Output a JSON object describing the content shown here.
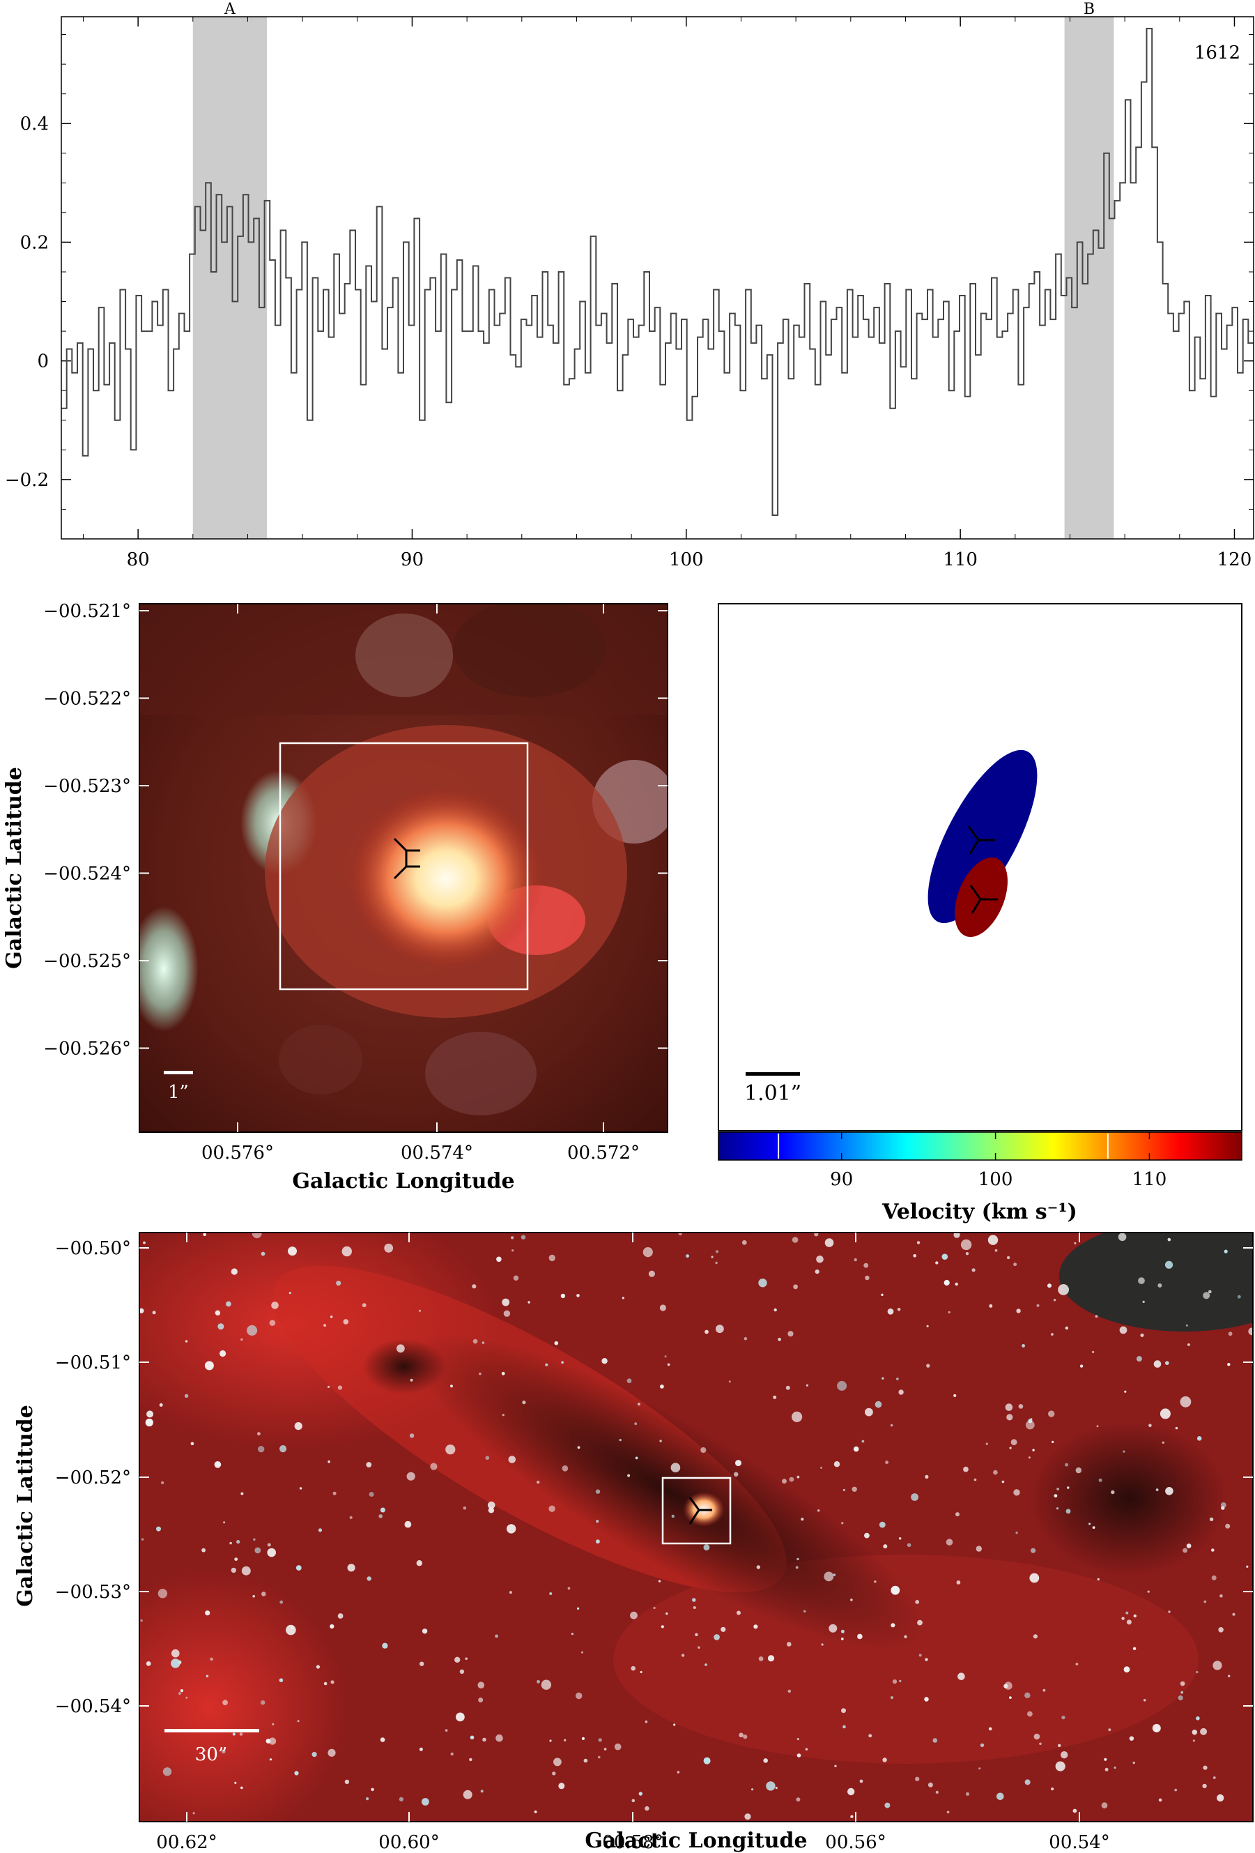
{
  "spectrum": {
    "channel_label": "1612",
    "chart_data": {
      "type": "line",
      "xlim": [
        77.2,
        120.7
      ],
      "ylim": [
        -0.3,
        0.58
      ],
      "x_ticks": [
        80,
        90,
        100,
        110,
        120
      ],
      "y_ticks": [
        -0.2,
        0,
        0.2,
        0.4
      ],
      "y_tick_labels": [
        "−0.2",
        "0",
        "0.2",
        "0.4"
      ],
      "highlight_regions": [
        {
          "label": "A",
          "x0": 82.0,
          "x1": 84.7
        },
        {
          "label": "B",
          "x0": 113.8,
          "x1": 115.6
        }
      ],
      "series_x_start": 77.2,
      "series_x_end": 120.7,
      "series_values": [
        -0.08,
        0.02,
        -0.02,
        0.03,
        -0.16,
        0.02,
        -0.05,
        0.09,
        -0.04,
        0.03,
        -0.1,
        0.12,
        0.02,
        -0.15,
        0.11,
        0.05,
        0.05,
        0.1,
        0.06,
        0.12,
        -0.05,
        0.02,
        0.08,
        0.05,
        0.18,
        0.26,
        0.22,
        0.3,
        0.15,
        0.28,
        0.2,
        0.26,
        0.1,
        0.21,
        0.28,
        0.2,
        0.24,
        0.09,
        0.27,
        0.17,
        0.06,
        0.22,
        0.14,
        -0.02,
        0.12,
        0.2,
        -0.1,
        0.14,
        0.05,
        0.12,
        0.04,
        0.18,
        0.08,
        0.13,
        0.22,
        0.12,
        -0.04,
        0.16,
        0.1,
        0.26,
        0.02,
        0.09,
        0.14,
        -0.02,
        0.2,
        0.06,
        0.24,
        -0.1,
        0.12,
        0.14,
        0.05,
        0.18,
        -0.07,
        0.12,
        0.17,
        0.05,
        0.05,
        0.16,
        0.05,
        0.03,
        0.12,
        0.06,
        0.08,
        0.14,
        0.01,
        -0.01,
        0.07,
        0.06,
        0.11,
        0.04,
        0.15,
        0.06,
        0.03,
        0.15,
        -0.04,
        -0.03,
        0.02,
        0.1,
        -0.02,
        0.21,
        0.06,
        0.08,
        0.03,
        0.13,
        -0.05,
        0.01,
        0.07,
        0.04,
        0.06,
        0.15,
        0.05,
        0.09,
        -0.04,
        0.03,
        0.08,
        0.02,
        0.07,
        -0.1,
        -0.06,
        0.04,
        0.07,
        0.02,
        0.12,
        0.05,
        -0.02,
        0.08,
        0.06,
        -0.05,
        0.12,
        0.03,
        0.06,
        -0.03,
        0.01,
        -0.26,
        0.03,
        0.07,
        -0.03,
        0.06,
        0.04,
        0.13,
        0.02,
        -0.04,
        0.1,
        0.01,
        0.07,
        0.09,
        -0.02,
        0.12,
        0.04,
        0.11,
        0.07,
        0.04,
        0.09,
        0.03,
        0.13,
        -0.08,
        0.05,
        -0.01,
        0.12,
        -0.03,
        0.08,
        0.07,
        0.12,
        0.04,
        0.07,
        0.1,
        -0.05,
        0.05,
        0.11,
        -0.06,
        0.13,
        0.01,
        0.08,
        0.07,
        0.14,
        0.04,
        0.05,
        0.08,
        0.12,
        -0.04,
        0.09,
        0.13,
        0.15,
        0.06,
        0.12,
        0.07,
        0.18,
        0.11,
        0.14,
        0.09,
        0.2,
        0.13,
        0.18,
        0.22,
        0.19,
        0.35,
        0.24,
        0.27,
        0.3,
        0.44,
        0.3,
        0.36,
        0.47,
        0.56,
        0.36,
        0.2,
        0.13,
        0.08,
        0.05,
        0.08,
        0.1,
        -0.05,
        0.04,
        -0.03,
        0.11,
        -0.06,
        0.08,
        0.02,
        0.06,
        0.09,
        -0.02,
        0.07,
        0.03
      ]
    }
  },
  "zoom_panel": {
    "y_ticks": [
      "−00.521°",
      "−00.522°",
      "−00.523°",
      "−00.524°",
      "−00.525°",
      "−00.526°"
    ],
    "x_ticks": [
      "00.576°",
      "00.574°",
      "00.572°"
    ],
    "x_title": "Galactic Longitude",
    "y_title": "Galactic Latitude",
    "scale_label": "1”"
  },
  "velocity_panel": {
    "scale_label": "1.01”",
    "colorbar_title": "Velocity (km s⁻¹)",
    "chart_data": {
      "type": "scatter",
      "colorbar_range": [
        82,
        116
      ],
      "colorbar_ticks": [
        90,
        100,
        110
      ],
      "marked_velocities": [
        85.9,
        107.3
      ],
      "components": [
        {
          "velocity": 83.4,
          "color": "#00008b"
        },
        {
          "velocity": 114.7,
          "color": "#8b0000"
        }
      ]
    }
  },
  "wide_panel": {
    "y_ticks": [
      "−00.50°",
      "−00.51°",
      "−00.52°",
      "−00.53°",
      "−00.54°"
    ],
    "x_ticks": [
      "00.62°",
      "00.60°",
      "00.58°",
      "00.56°",
      "00.54°"
    ],
    "x_title": "Galactic Longitude",
    "y_title": "Galactic Latitude",
    "scale_label": "30”"
  }
}
